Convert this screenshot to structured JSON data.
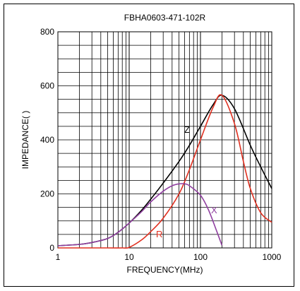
{
  "chart_data": {
    "type": "line",
    "title": "FBHA0603-471-102R",
    "xlabel": "FREQUENCY(MHz)",
    "ylabel": "IMPEDANCE(   )",
    "x_scale": "log",
    "xlim": [
      1,
      1000
    ],
    "ylim": [
      0,
      800
    ],
    "x_ticks": [
      1,
      10,
      100,
      1000
    ],
    "x_tick_labels": [
      "1",
      "10",
      "100",
      "1000"
    ],
    "y_ticks": [
      0,
      200,
      400,
      600,
      800
    ],
    "y_tick_labels": [
      "0",
      "200",
      "400",
      "600",
      "800"
    ],
    "grid": true,
    "series": [
      {
        "name": "Z",
        "color": "#000000",
        "x": [
          1,
          2,
          3,
          5,
          7,
          10,
          15,
          20,
          30,
          50,
          70,
          100,
          150,
          200,
          300,
          500,
          700,
          1000
        ],
        "y": [
          8,
          13,
          20,
          35,
          58,
          92,
          140,
          180,
          240,
          320,
          380,
          450,
          530,
          565,
          515,
          380,
          300,
          220
        ]
      },
      {
        "name": "R",
        "color": "#e03020",
        "x": [
          1,
          5,
          8,
          10,
          15,
          20,
          30,
          50,
          70,
          100,
          150,
          200,
          300,
          400,
          500,
          700,
          1000
        ],
        "y": [
          0,
          0,
          0,
          2,
          30,
          60,
          110,
          200,
          290,
          400,
          520,
          565,
          460,
          320,
          220,
          130,
          95
        ]
      },
      {
        "name": "X",
        "color": "#9040a0",
        "x": [
          1,
          2,
          3,
          5,
          7,
          10,
          15,
          20,
          30,
          40,
          50,
          60,
          70,
          100,
          130,
          170,
          200
        ],
        "y": [
          8,
          13,
          20,
          35,
          58,
          92,
          135,
          170,
          210,
          230,
          237,
          237,
          230,
          195,
          140,
          60,
          10
        ]
      }
    ]
  },
  "labels": {
    "z": "Z",
    "r": "R",
    "x": "X"
  }
}
